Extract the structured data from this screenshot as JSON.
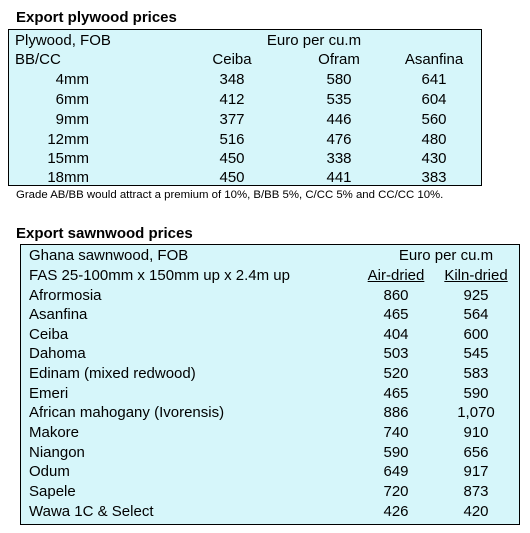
{
  "plywood": {
    "title": "Export plywood prices",
    "header_left_1": "Plywood, FOB",
    "header_left_2": "BB/CC",
    "unit": "Euro per cu.m",
    "columns": [
      "Ceiba",
      "Ofram",
      "Asanfina"
    ],
    "rows": [
      {
        "label": "4mm",
        "values": [
          "348",
          "580",
          "641"
        ]
      },
      {
        "label": "6mm",
        "values": [
          "412",
          "535",
          "604"
        ]
      },
      {
        "label": "9mm",
        "values": [
          "377",
          "446",
          "560"
        ]
      },
      {
        "label": "12mm",
        "values": [
          "516",
          "476",
          "480"
        ]
      },
      {
        "label": "15mm",
        "values": [
          "450",
          "338",
          "430"
        ]
      },
      {
        "label": "18mm",
        "values": [
          "450",
          "441",
          "383"
        ]
      }
    ],
    "note": "Grade AB/BB would attract a premium of 10%, B/BB 5%, C/CC 5% and CC/CC 10%."
  },
  "sawnwood": {
    "title": "Export sawnwood prices",
    "header_left_1": "Ghana sawnwood, FOB",
    "header_left_2": "FAS 25-100mm x 150mm up x 2.4m up",
    "unit": "Euro per cu.m",
    "columns": [
      "Air-dried",
      "Kiln-dried"
    ],
    "rows": [
      {
        "label": "Afrormosia",
        "values": [
          "860",
          "925"
        ]
      },
      {
        "label": "Asanfina",
        "values": [
          "465",
          "564"
        ]
      },
      {
        "label": "Ceiba",
        "values": [
          "404",
          "600"
        ]
      },
      {
        "label": "Dahoma",
        "values": [
          "503",
          "545"
        ]
      },
      {
        "label": "Edinam (mixed redwood)",
        "values": [
          "520",
          "583"
        ]
      },
      {
        "label": "Emeri",
        "values": [
          "465",
          "590"
        ]
      },
      {
        "label": "African mahogany (Ivorensis)",
        "values": [
          "886",
          "1,070"
        ]
      },
      {
        "label": "Makore",
        "values": [
          "740",
          "910"
        ]
      },
      {
        "label": "Niangon",
        "values": [
          "590",
          "656"
        ]
      },
      {
        "label": "Odum",
        "values": [
          "649",
          "917"
        ]
      },
      {
        "label": "Sapele",
        "values": [
          "720",
          "873"
        ]
      },
      {
        "label": "Wawa 1C & Select",
        "values": [
          "426",
          "420"
        ]
      }
    ]
  }
}
